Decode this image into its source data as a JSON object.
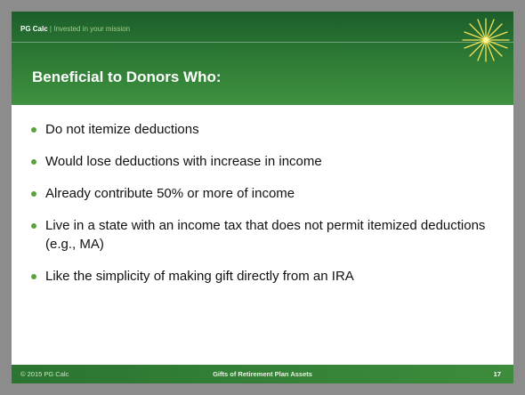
{
  "header": {
    "brand": "PG Calc",
    "separator": "|",
    "tagline": "Invested in your mission"
  },
  "slide": {
    "title": "Beneficial to Donors Who:",
    "bullets": [
      "Do not itemize deductions",
      "Would lose deductions with increase in income",
      "Already contribute 50% or more of income",
      "Live in a state with an income tax that does not permit itemized deductions (e.g., MA)",
      "Like the simplicity of making gift directly from an IRA"
    ]
  },
  "footer": {
    "copyright": "© 2015 PG Calc",
    "title": "Gifts of Retirement Plan Assets",
    "page_number": "17"
  }
}
